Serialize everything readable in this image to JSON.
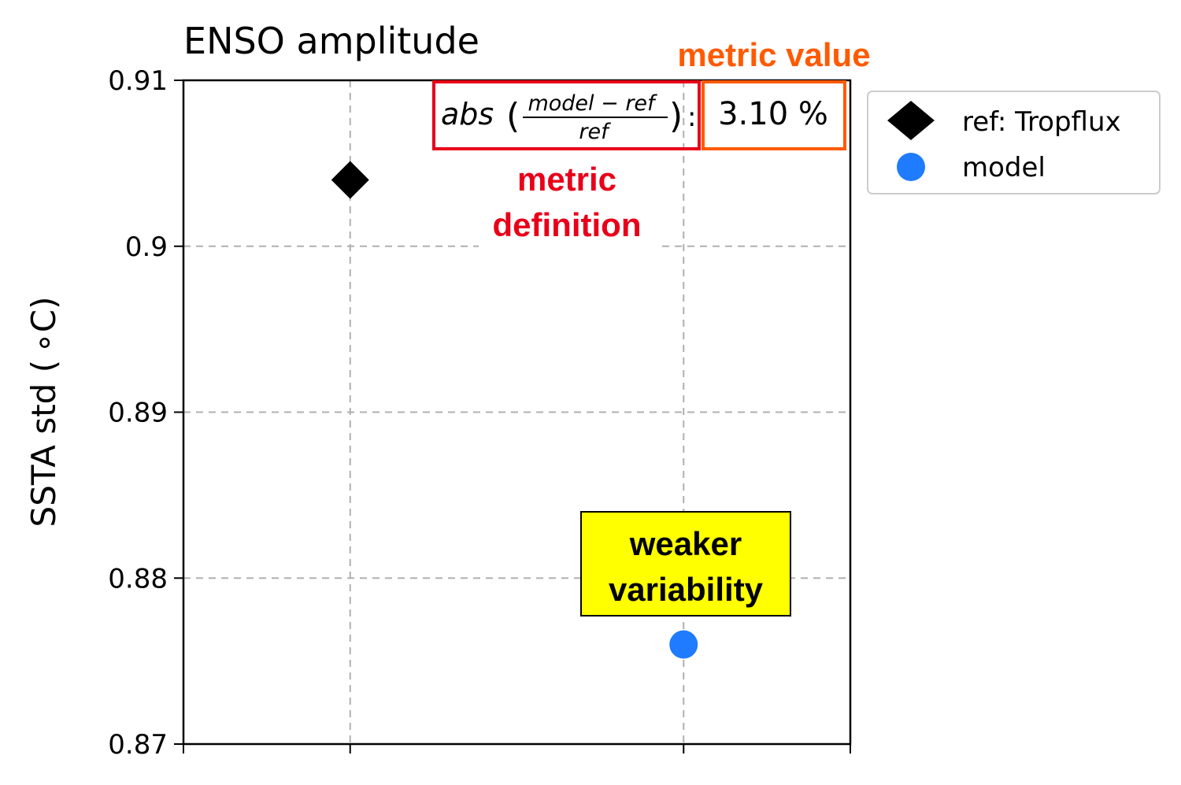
{
  "chart_data": {
    "type": "scatter",
    "title": "ENSO amplitude",
    "ylabel": "SSTA std ( $^\\circ$C)",
    "ylabel_display": "SSTA std ( ∘C)",
    "ylim": [
      0.87,
      0.91
    ],
    "yticks": [
      0.87,
      0.88,
      0.89,
      0.9,
      0.91
    ],
    "ytick_labels": [
      "0.87",
      "0.88",
      "0.89",
      "0.9",
      "0.91"
    ],
    "xlim": [
      0,
      2
    ],
    "grid": true,
    "legend_position": "outside-right-top",
    "series": [
      {
        "name": "ref: Tropflux",
        "marker": "diamond",
        "color": "#000000",
        "x": 0.5,
        "y": 0.904
      },
      {
        "name": "model",
        "marker": "circle",
        "color": "#1f7bff",
        "x": 1.5,
        "y": 0.876
      }
    ],
    "metric": {
      "formula_prefix": "abs",
      "formula_numerator": "model − ref",
      "formula_denominator": "ref",
      "separator": ":",
      "value": "3.10 %"
    },
    "annotations": {
      "metric_value_label": "metric value",
      "metric_definition_line1": "metric",
      "metric_definition_line2": "definition",
      "weaker_line1": "weaker",
      "weaker_line2": "variability"
    }
  },
  "colors": {
    "red": "#e8001a",
    "orange": "#ff5a00",
    "yellow": "#ffff00",
    "model_blue": "#1f7bff",
    "grid": "#b0b0b0"
  }
}
